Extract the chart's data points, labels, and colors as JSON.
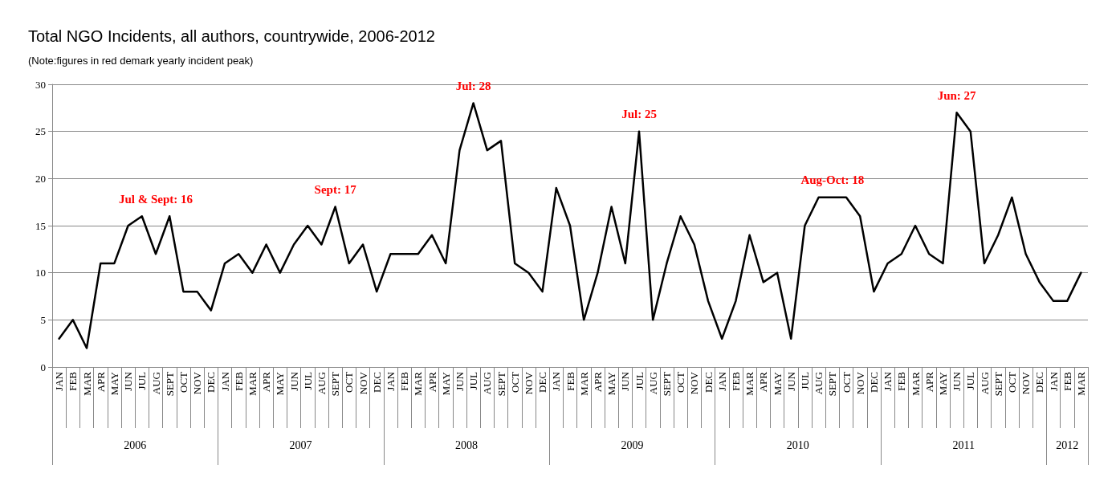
{
  "chart_data": {
    "type": "line",
    "title": "Total NGO Incidents, all authors, countrywide, 2006-2012",
    "subtitle": "(Note:figures in red demark yearly incident peak)",
    "categories": [
      "JAN",
      "FEB",
      "MAR",
      "APR",
      "MAY",
      "JUN",
      "JUL",
      "AUG",
      "SEPT",
      "OCT",
      "NOV",
      "DEC",
      "JAN",
      "FEB",
      "MAR",
      "APR",
      "MAY",
      "JUN",
      "JUL",
      "AUG",
      "SEPT",
      "OCT",
      "NOV",
      "DEC",
      "JAN",
      "FEB",
      "MAR",
      "APR",
      "MAY",
      "JUN",
      "JUL",
      "AUG",
      "SEPT",
      "OCT",
      "NOV",
      "DEC",
      "JAN",
      "FEB",
      "MAR",
      "APR",
      "MAY",
      "JUN",
      "JUL",
      "AUG",
      "SEPT",
      "OCT",
      "NOV",
      "DEC",
      "JAN",
      "FEB",
      "MAR",
      "APR",
      "MAY",
      "JUN",
      "JUL",
      "AUG",
      "SEPT",
      "OCT",
      "NOV",
      "DEC",
      "JAN",
      "FEB",
      "MAR",
      "APR",
      "MAY",
      "JUN",
      "JUL",
      "AUG",
      "SEPT",
      "OCT",
      "NOV",
      "DEC",
      "JAN",
      "FEB",
      "MAR"
    ],
    "series": [
      {
        "color": "#000000",
        "values": [
          3,
          5,
          2,
          11,
          11,
          15,
          16,
          12,
          16,
          8,
          8,
          6,
          11,
          12,
          10,
          13,
          10,
          13,
          15,
          13,
          17,
          11,
          13,
          8,
          12,
          12,
          12,
          14,
          11,
          23,
          28,
          23,
          24,
          11,
          10,
          8,
          19,
          15,
          5,
          10,
          17,
          11,
          25,
          5,
          11,
          16,
          13,
          7,
          3,
          7,
          14,
          9,
          10,
          3,
          15,
          18,
          18,
          18,
          16,
          8,
          11,
          12,
          15,
          12,
          11,
          27,
          25,
          11,
          14,
          18,
          12,
          9,
          7,
          7,
          10
        ]
      }
    ],
    "ylim": [
      0,
      30
    ],
    "yticks": [
      0,
      5,
      10,
      15,
      20,
      25,
      30
    ],
    "grid": "y",
    "marker": "none",
    "line_style": "solid",
    "annotations": [
      "2006",
      "2007",
      "2008",
      "2009",
      "2010",
      "2011",
      "2012",
      "Jul & Sept: 16",
      "Sept: 17",
      "Jul: 28",
      "Jul: 25",
      "Aug-Oct: 18",
      "Jun: 27"
    ]
  }
}
